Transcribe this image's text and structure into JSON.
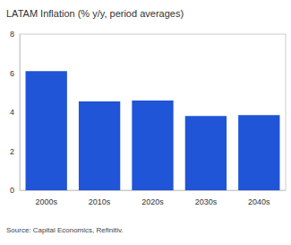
{
  "chart_data": {
    "type": "bar",
    "title": "LATAM Inflation (% y/y, period averages)",
    "source": "Source: Capital Economics, Refinitiv.",
    "categories": [
      "2000s",
      "2010s",
      "2020s",
      "2030s",
      "2040s"
    ],
    "values": [
      6.1,
      4.55,
      4.6,
      3.8,
      3.85
    ],
    "color": "#1f55d6",
    "ylim": [
      0,
      8
    ],
    "yticks": [
      0,
      2,
      4,
      6,
      8
    ],
    "grid": false
  }
}
